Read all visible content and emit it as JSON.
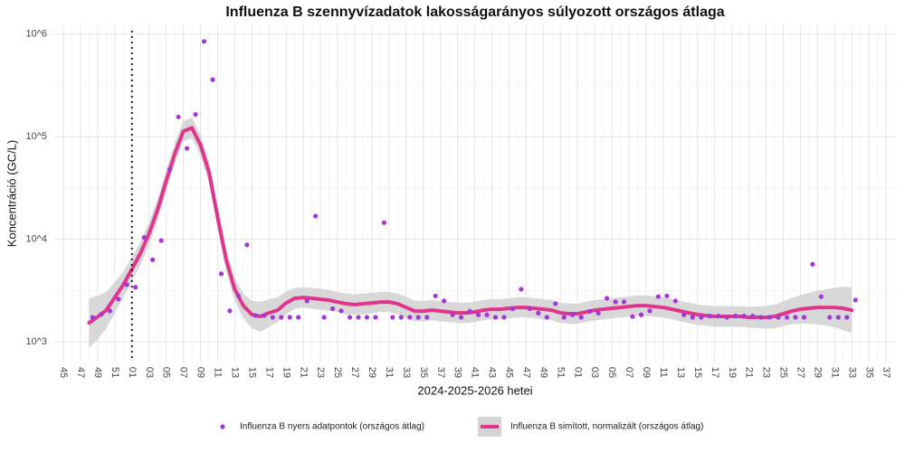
{
  "chart_data": {
    "type": "line",
    "title": "Influenza B szennyvízadatok lakosságarányos súlyozott országos átlaga",
    "x_label": "2024-2025-2026 hetei",
    "y_label": "Koncentráció (GC/L)",
    "log_y": true,
    "grid": true,
    "legend": "bottom",
    "ylim": [
      640,
      1220000
    ],
    "yticks": [
      {
        "value": 1000,
        "label": "10^3"
      },
      {
        "value": 10000,
        "label": "10^4"
      },
      {
        "value": 100000,
        "label": "10^5"
      },
      {
        "value": 1000000,
        "label": "10^6"
      }
    ],
    "vline": 8,
    "categories": [
      "45",
      null,
      "47",
      null,
      "49",
      null,
      "51",
      null,
      "01",
      null,
      "03",
      null,
      "05",
      null,
      "07",
      null,
      "09",
      null,
      "11",
      null,
      "13",
      null,
      "15",
      null,
      "17",
      null,
      "19",
      null,
      "21",
      null,
      "23",
      null,
      "25",
      null,
      "27",
      null,
      "29",
      null,
      "31",
      null,
      "33",
      null,
      "35",
      null,
      "37",
      null,
      "39",
      null,
      "41",
      null,
      "43",
      null,
      "45",
      null,
      "47",
      null,
      "49",
      null,
      "51",
      null,
      "01",
      null,
      "03",
      null,
      "05",
      null,
      "07",
      null,
      "09",
      null,
      "11",
      null,
      "13",
      null,
      "15",
      null,
      "17",
      null,
      "19",
      null,
      "21",
      null,
      "23",
      null,
      "25",
      null,
      "27",
      null,
      "29",
      null,
      "31",
      null,
      "33",
      null,
      "35",
      null,
      "37"
    ],
    "series": [
      {
        "name": "Influenza B nyers adatpontok (országos átlag)",
        "type": "scatter",
        "color": "#a537d8",
        "values": [
          null,
          null,
          null,
          1730,
          1850,
          2000,
          2600,
          3600,
          3400,
          10400,
          6300,
          9700,
          48000,
          156000,
          77000,
          165000,
          850000,
          360000,
          4600,
          2000,
          2800,
          8800,
          1800,
          1800,
          1730,
          1730,
          1730,
          1730,
          2500,
          16800,
          1730,
          2100,
          2000,
          1730,
          1730,
          1730,
          1730,
          14500,
          1730,
          1730,
          1730,
          1730,
          1730,
          2800,
          2500,
          1830,
          1730,
          1980,
          1830,
          1830,
          1730,
          1730,
          2100,
          3250,
          2100,
          1900,
          1730,
          2350,
          1730,
          1830,
          1730,
          1980,
          1900,
          2650,
          2450,
          2450,
          1760,
          1830,
          2000,
          2750,
          2800,
          2500,
          1830,
          1730,
          1730,
          1780,
          1780,
          1730,
          1780,
          1780,
          1780,
          1730,
          1730,
          1730,
          1730,
          1730,
          1730,
          5700,
          2750,
          1730,
          1730,
          1730,
          2550,
          null,
          null,
          null,
          null
        ]
      },
      {
        "name": "Influenza B simított, normalizált (országos átlag)",
        "type": "line",
        "color": "#e0358c",
        "band_color": "#d4d4d4",
        "values": [
          null,
          null,
          null,
          1530,
          1750,
          2030,
          2700,
          3600,
          5100,
          7300,
          11400,
          19400,
          37000,
          68000,
          113000,
          122000,
          83000,
          45000,
          16400,
          6300,
          3240,
          2250,
          1840,
          1765,
          1910,
          2030,
          2390,
          2650,
          2700,
          2650,
          2600,
          2540,
          2440,
          2345,
          2300,
          2345,
          2390,
          2440,
          2440,
          2345,
          2160,
          1990,
          1990,
          2030,
          1990,
          1950,
          1910,
          1910,
          1950,
          2030,
          2075,
          2075,
          2120,
          2160,
          2160,
          2120,
          2075,
          2030,
          1910,
          1875,
          1875,
          1950,
          2030,
          2075,
          2120,
          2160,
          2205,
          2250,
          2250,
          2205,
          2160,
          2075,
          1990,
          1910,
          1840,
          1800,
          1765,
          1765,
          1765,
          1765,
          1730,
          1730,
          1730,
          1765,
          1875,
          1990,
          2075,
          2120,
          2160,
          2160,
          2160,
          2120,
          2030,
          null,
          null,
          null,
          null
        ],
        "lower": [
          null,
          null,
          null,
          870,
          1050,
          1350,
          1900,
          2700,
          3900,
          5600,
          8800,
          15000,
          29000,
          54000,
          90000,
          97000,
          66000,
          35000,
          12800,
          4900,
          2500,
          1700,
          1350,
          1250,
          1400,
          1550,
          1850,
          2100,
          2150,
          2100,
          2050,
          2000,
          1950,
          1850,
          1850,
          1850,
          1900,
          1950,
          1950,
          1850,
          1700,
          1580,
          1580,
          1620,
          1580,
          1550,
          1520,
          1520,
          1550,
          1620,
          1650,
          1650,
          1690,
          1720,
          1720,
          1690,
          1650,
          1620,
          1520,
          1490,
          1490,
          1550,
          1620,
          1650,
          1690,
          1720,
          1750,
          1790,
          1790,
          1750,
          1720,
          1650,
          1580,
          1520,
          1460,
          1430,
          1400,
          1400,
          1400,
          1400,
          1370,
          1360,
          1340,
          1350,
          1420,
          1480,
          1510,
          1500,
          1480,
          1430,
          1380,
          1300,
          1210,
          null,
          null,
          null,
          null
        ],
        "upper": [
          null,
          null,
          null,
          2650,
          2800,
          3050,
          3800,
          4800,
          6700,
          9500,
          14800,
          25000,
          47000,
          86000,
          142000,
          154000,
          105000,
          57000,
          21000,
          8100,
          4200,
          2950,
          2500,
          2450,
          2600,
          2700,
          3100,
          3350,
          3400,
          3350,
          3300,
          3200,
          3050,
          2950,
          2900,
          2950,
          3000,
          3050,
          3050,
          2950,
          2750,
          2500,
          2500,
          2550,
          2500,
          2450,
          2400,
          2400,
          2450,
          2550,
          2600,
          2600,
          2660,
          2710,
          2710,
          2660,
          2600,
          2550,
          2400,
          2360,
          2360,
          2450,
          2550,
          2600,
          2660,
          2710,
          2770,
          2830,
          2830,
          2770,
          2710,
          2600,
          2500,
          2400,
          2310,
          2260,
          2220,
          2220,
          2220,
          2220,
          2180,
          2200,
          2230,
          2300,
          2480,
          2680,
          2850,
          3000,
          3150,
          3250,
          3350,
          3450,
          3400,
          null,
          null,
          null,
          null
        ]
      }
    ]
  }
}
